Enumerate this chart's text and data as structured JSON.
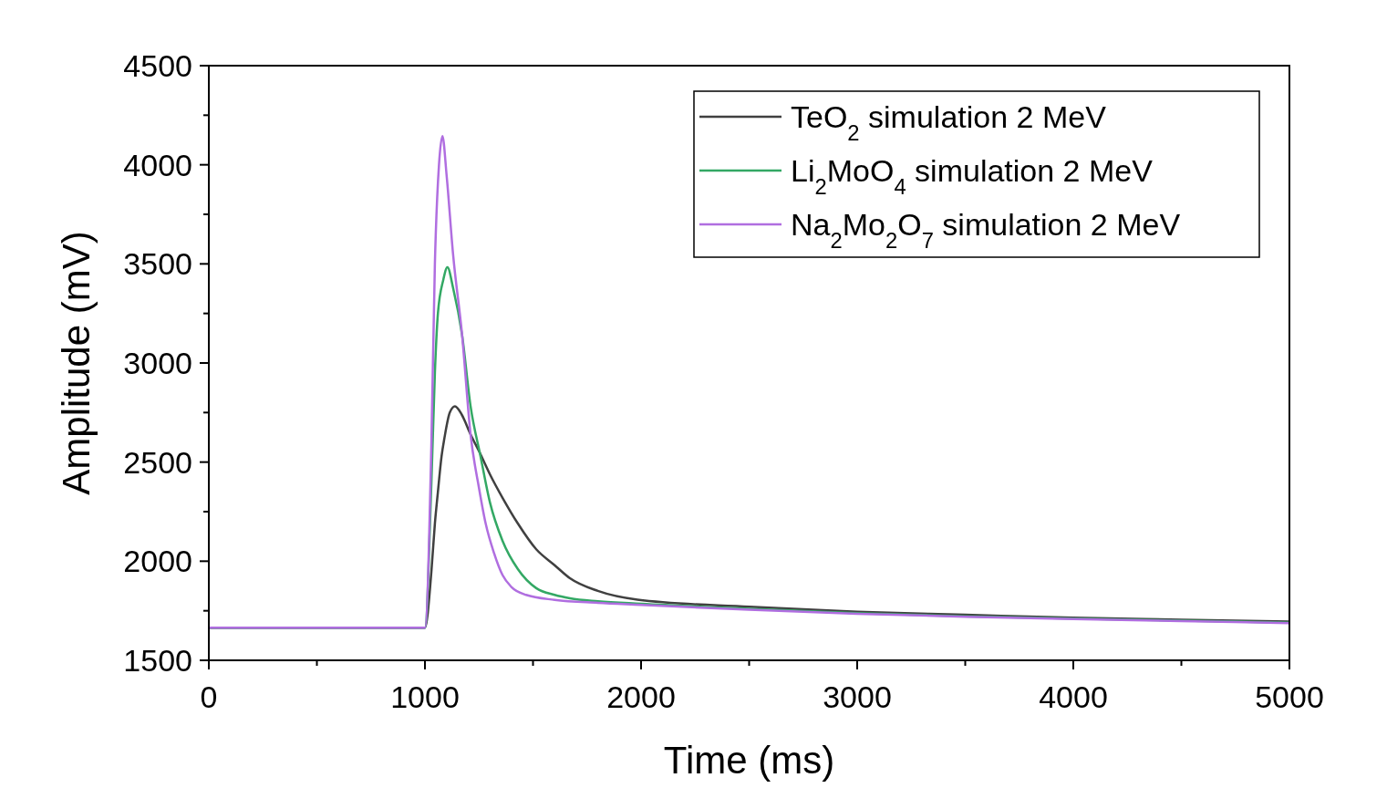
{
  "chart_data": {
    "type": "line",
    "xlabel": "Time (ms)",
    "ylabel": "Amplitude (mV)",
    "xlim": [
      0,
      5000
    ],
    "ylim": [
      1500,
      4500
    ],
    "xticks": [
      0,
      {
        "value": 500,
        "label": null
      },
      1000,
      {
        "value": 1500,
        "label": null
      },
      2000,
      {
        "value": 2500,
        "label": null
      },
      3000,
      {
        "value": 3500,
        "label": null
      },
      4000,
      {
        "value": 4500,
        "label": null
      },
      5000
    ],
    "yticks": [
      1500,
      {
        "value": 1750,
        "label": null
      },
      2000,
      {
        "value": 2250,
        "label": null
      },
      2500,
      {
        "value": 2750,
        "label": null
      },
      3000,
      {
        "value": 3250,
        "label": null
      },
      3500,
      {
        "value": 3750,
        "label": null
      },
      4000,
      {
        "value": 4250,
        "label": null
      },
      4500
    ],
    "grid": false,
    "legend": "top right",
    "line_style": "solid",
    "series": [
      {
        "name": "TeO$_{2}$ simulation 2 MeV",
        "color": "#404040",
        "x": [
          0,
          1000,
          1030,
          1046,
          1060,
          1077,
          1090,
          1115,
          1139,
          1170,
          1211,
          1257,
          1300,
          1359,
          1430,
          1515,
          1600,
          1671,
          1800,
          1983,
          2500,
          3000,
          3500,
          4000,
          4500,
          5000
        ],
        "values": [
          1665,
          1665,
          1950,
          2190,
          2350,
          2530,
          2620,
          2750,
          2781,
          2740,
          2640,
          2540,
          2440,
          2320,
          2190,
          2060,
          1980,
          1914,
          1850,
          1806,
          1770,
          1745,
          1730,
          1715,
          1705,
          1695
        ]
      },
      {
        "name": "Li$_{2}$MoO$_{4}$ simulation 2 MeV",
        "color": "#33a864",
        "x": [
          0,
          1000,
          1030,
          1046,
          1060,
          1085,
          1104,
          1130,
          1172,
          1211,
          1257,
          1300,
          1359,
          1430,
          1515,
          1600,
          1671,
          1800,
          2000,
          2500,
          3000,
          3500,
          4000,
          4500,
          5000
        ],
        "values": [
          1665,
          1665,
          2400,
          2950,
          3250,
          3420,
          3483,
          3380,
          3140,
          2783,
          2530,
          2300,
          2103,
          1960,
          1864,
          1830,
          1813,
          1798,
          1785,
          1760,
          1738,
          1722,
          1710,
          1700,
          1690
        ]
      },
      {
        "name": "Na$_{2}$Mo$_{2}$O$_{7}$ simulation 2 MeV",
        "color": "#b06ee0",
        "x": [
          0,
          1000,
          1030,
          1046,
          1065,
          1081,
          1100,
          1130,
          1172,
          1211,
          1250,
          1281,
          1320,
          1359,
          1400,
          1468,
          1600,
          1800,
          2000,
          2500,
          3000,
          3500,
          4000,
          4500,
          5000
        ],
        "values": [
          1665,
          1665,
          2600,
          3500,
          4000,
          4145,
          3950,
          3550,
          3140,
          2640,
          2370,
          2190,
          2040,
          1930,
          1870,
          1830,
          1805,
          1790,
          1780,
          1755,
          1735,
          1720,
          1708,
          1698,
          1688
        ]
      }
    ]
  }
}
